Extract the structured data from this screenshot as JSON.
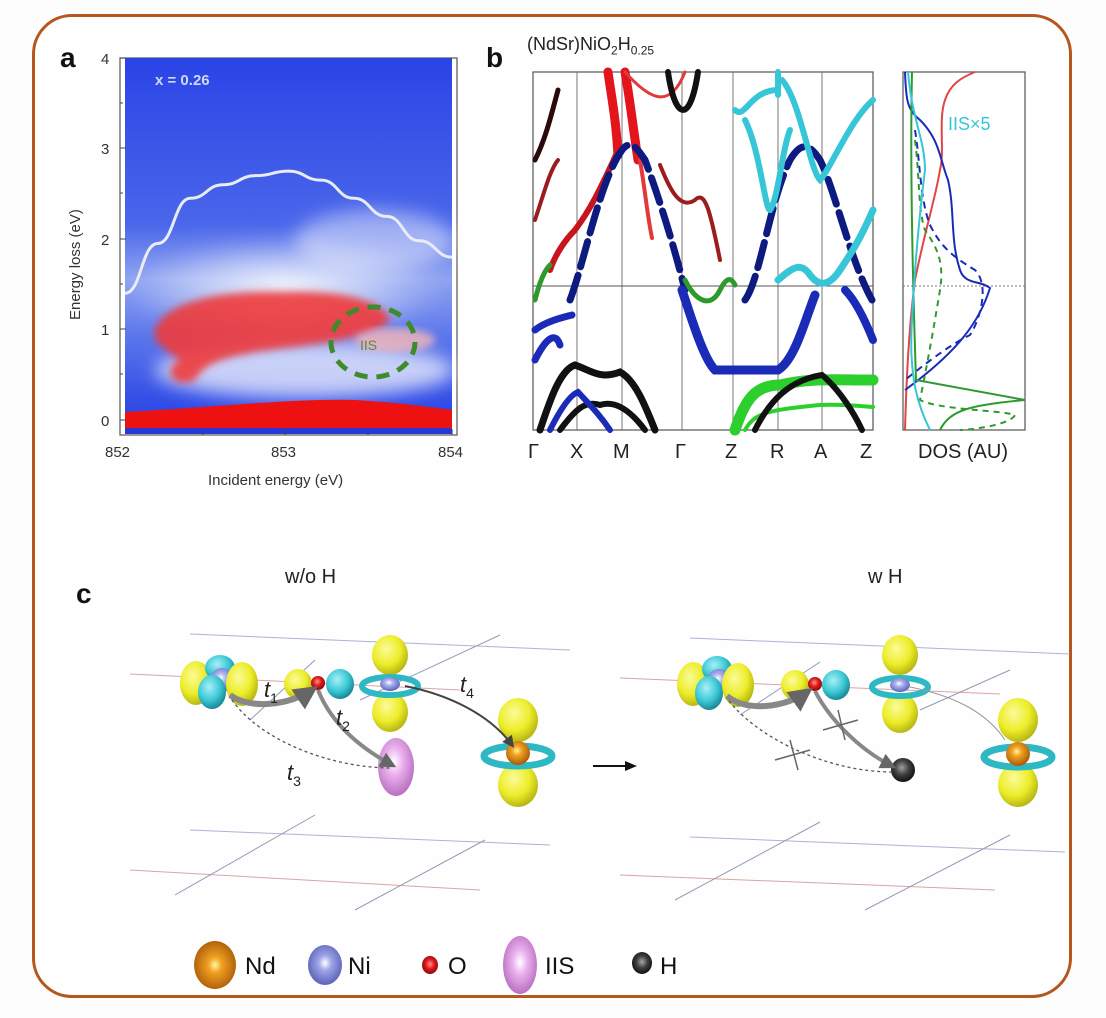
{
  "panels": {
    "a": {
      "letter": "a",
      "annotation": "x = 0.26",
      "iis_label": "IIS",
      "xlabel": "Incident energy (eV)",
      "ylabel": "Energy loss (eV)",
      "xticks": [
        "852",
        "853",
        "854"
      ],
      "yticks": [
        "0",
        "1",
        "2",
        "3",
        "4"
      ]
    },
    "b": {
      "letter": "b",
      "title_main": "(NdSr)NiO",
      "title_sub1": "2",
      "title_H": "H",
      "title_sub2": "0.25",
      "kpoints": [
        "Γ",
        "X",
        "M",
        "Γ",
        "Z",
        "R",
        "A",
        "Z"
      ],
      "dos_label": "DOS (AU)",
      "iis_label": "IIS×5"
    },
    "c": {
      "letter": "c",
      "title_left": "w/o H",
      "title_right": "w H",
      "hoppings": {
        "t1": "t",
        "t1_sub": "1",
        "t2": "t",
        "t2_sub": "2",
        "t3": "t",
        "t3_sub": "3",
        "t4": "t",
        "t4_sub": "4"
      }
    }
  },
  "legend": [
    {
      "label": "Nd",
      "color": "#d9780e",
      "icon": "nd-sphere-icon"
    },
    {
      "label": "Ni",
      "color": "#7f86d6",
      "icon": "ni-sphere-icon"
    },
    {
      "label": "O",
      "color": "#d41414",
      "icon": "o-sphere-icon"
    },
    {
      "label": "IIS",
      "color": "#d98ee0",
      "icon": "iis-ellipsoid-icon"
    },
    {
      "label": "H",
      "color": "#3a3a3a",
      "icon": "h-sphere-icon"
    }
  ],
  "colors": {
    "frame": "#b5561d",
    "rixs_blue": "#2540e0",
    "rixs_red": "#ee2a2a",
    "iis_green": "#3f8a2a",
    "band_red": "#e3141c",
    "band_darkred": "#9c1d1d",
    "band_blue": "#1a2bb8",
    "band_navy": "#0d1a80",
    "band_black": "#111111",
    "band_green": "#2e9a2e",
    "band_lightgreen": "#2ccf2c",
    "band_cyan": "#36c6d8",
    "orbital_yellow": "#eded2a",
    "orbital_cyan": "#3cc9d6"
  },
  "chart_data": [
    {
      "type": "heatmap",
      "panel": "a",
      "title": "",
      "annotation": "x = 0.26",
      "xlabel": "Incident energy (eV)",
      "ylabel": "Energy loss (eV)",
      "xlim": [
        852,
        854
      ],
      "ylim": [
        -0.15,
        4
      ],
      "xticks": [
        852,
        853,
        854
      ],
      "yticks": [
        0,
        1,
        2,
        3,
        4
      ],
      "features": [
        {
          "name": "elastic line",
          "energy_loss": 0.0,
          "intensity": "high"
        },
        {
          "name": "dd excitation",
          "x_range": [
            852.2,
            853.5
          ],
          "energy_loss_range": [
            0.6,
            1.4
          ],
          "intensity": "high"
        },
        {
          "name": "IIS",
          "center": [
            853.6,
            0.85
          ],
          "marker": "dashed green ellipse"
        }
      ],
      "overlay_curve": {
        "name": "white contour",
        "x": [
          852.0,
          852.2,
          852.4,
          852.6,
          852.8,
          853.0,
          853.2,
          853.4,
          853.6,
          853.8,
          854.0
        ],
        "y": [
          1.4,
          1.95,
          2.45,
          2.6,
          2.7,
          2.75,
          2.65,
          2.45,
          2.25,
          1.98,
          1.8
        ]
      }
    },
    {
      "type": "line",
      "panel": "b",
      "title": "(NdSr)NiO2H0.25",
      "xlabel": "",
      "kpath": [
        "Γ",
        "X",
        "M",
        "Γ",
        "Z",
        "R",
        "A",
        "Z"
      ],
      "fermi_level": "horizontal line",
      "series_colors": [
        "red",
        "dark red",
        "blue",
        "navy",
        "black",
        "green",
        "light green",
        "cyan"
      ]
    },
    {
      "type": "line",
      "panel": "b-dos",
      "xlabel": "DOS (AU)",
      "legend": [
        "IIS×5"
      ],
      "series": [
        {
          "name": "red",
          "style": "solid"
        },
        {
          "name": "blue",
          "style": "solid"
        },
        {
          "name": "blue",
          "style": "dashed"
        },
        {
          "name": "green",
          "style": "solid"
        },
        {
          "name": "green",
          "style": "dashed"
        },
        {
          "name": "IIS×5",
          "color": "cyan",
          "style": "solid"
        }
      ]
    }
  ]
}
